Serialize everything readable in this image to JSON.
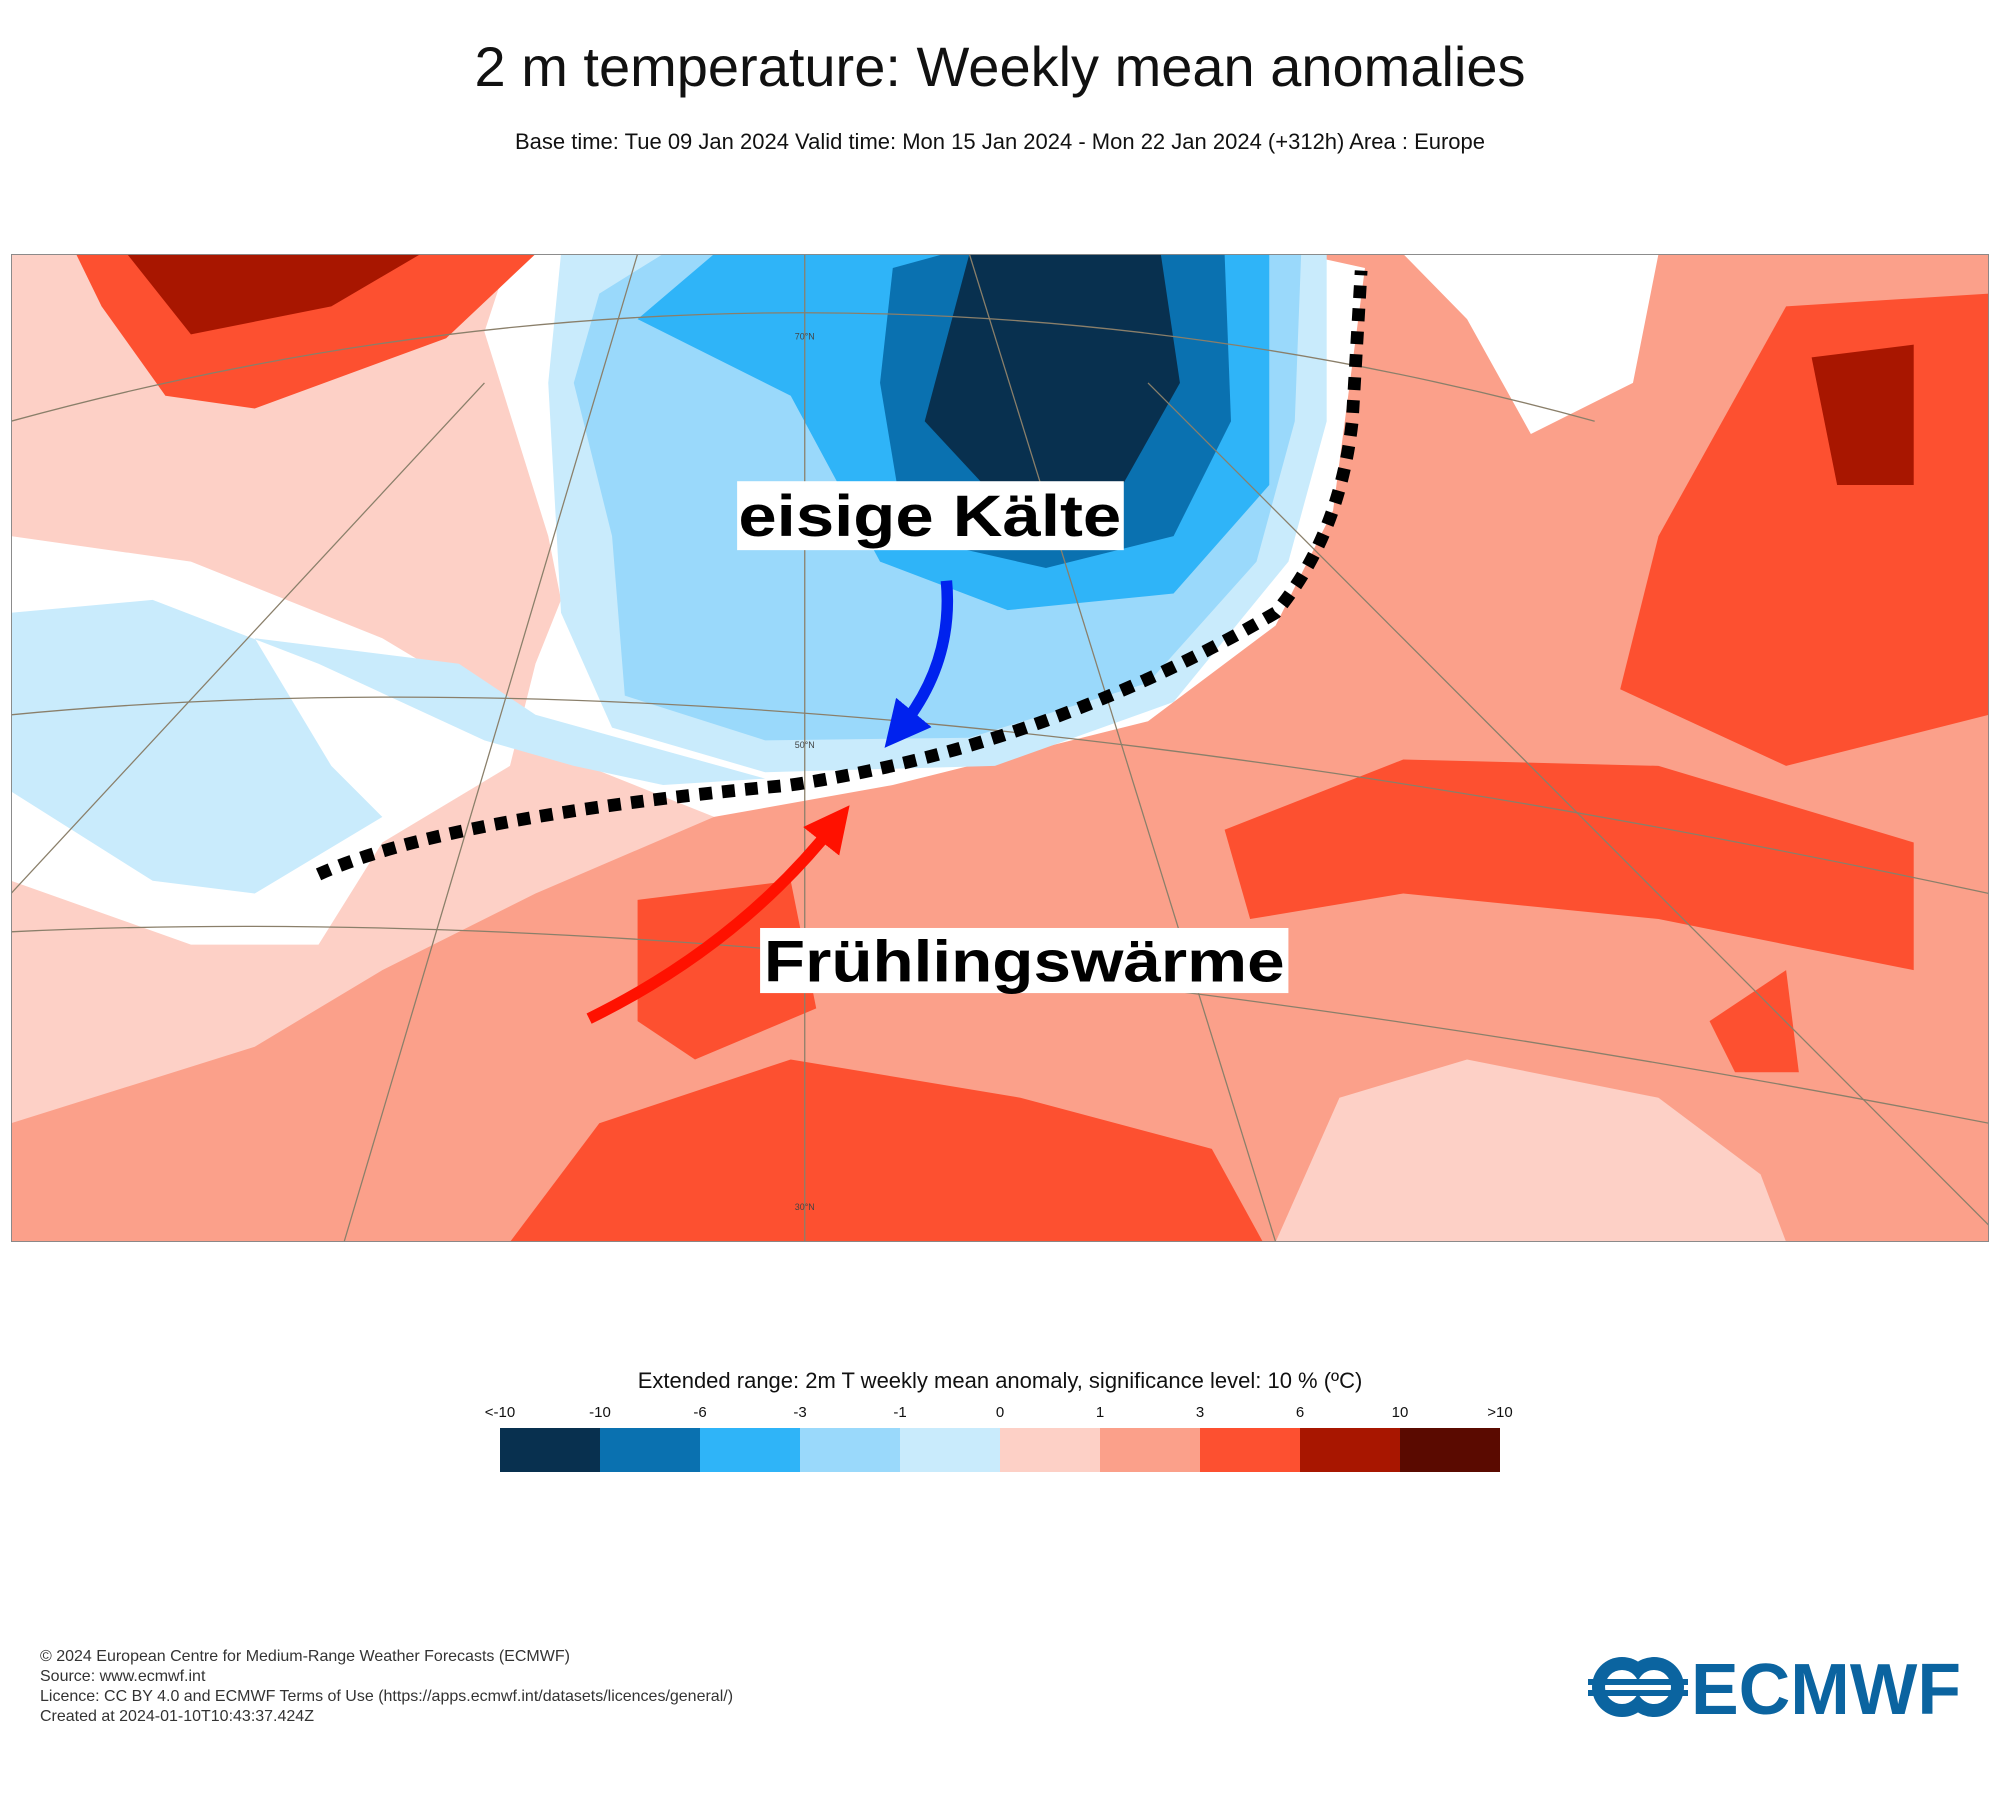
{
  "header": {
    "title": "2 m temperature: Weekly mean anomalies",
    "subtitle": "Base time: Tue 09 Jan 2024 Valid time: Mon 15 Jan 2024 - Mon 22 Jan 2024 (+312h) Area : Europe"
  },
  "map": {
    "latitude_labels": [
      "70°N",
      "50°N",
      "30°N"
    ],
    "annotations": [
      "eisige Kälte",
      "Frühlingswärme"
    ]
  },
  "legend": {
    "title": "Extended range: 2m T weekly mean anomaly, significance level: 10 % (ºC)",
    "ticks": [
      "<-10",
      "-10",
      "-6",
      "-3",
      "-1",
      "0",
      "1",
      "3",
      "6",
      "10",
      ">10"
    ],
    "colors": [
      "#08304f",
      "#0a71b0",
      "#2fb4f8",
      "#9ad9fb",
      "#c9ebfc",
      "#fdd0c6",
      "#fba08a",
      "#fd5030",
      "#a81600",
      "#5a0a00"
    ]
  },
  "footer": {
    "lines": [
      "© 2024 European Centre for Medium-Range Weather Forecasts (ECMWF)",
      "Source: www.ecmwf.int",
      "Licence: CC BY 4.0 and ECMWF Terms of Use (https://apps.ecmwf.int/datasets/licences/general/)",
      "Created at 2024-01-10T10:43:37.424Z"
    ]
  },
  "logo": "ECMWF"
}
